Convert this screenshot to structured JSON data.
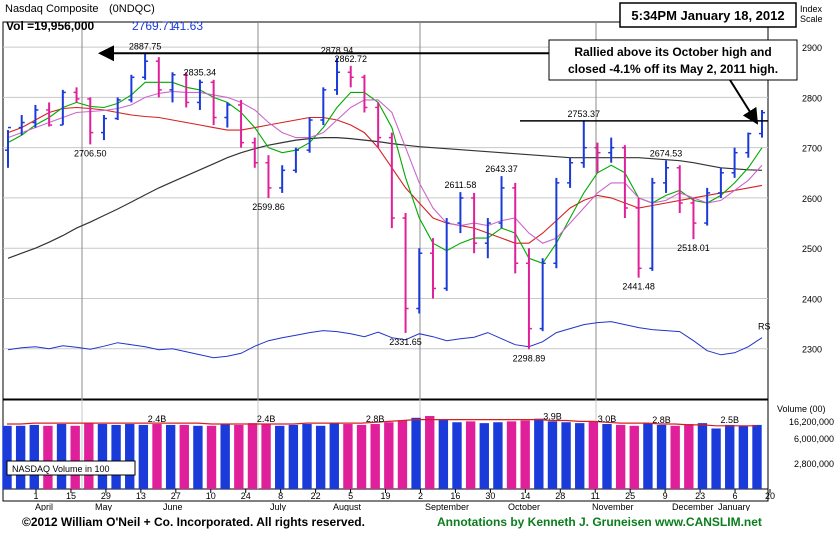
{
  "chart_data": {
    "type": "candlestick",
    "title": "Nasdaq Composite",
    "symbol": "(0NDQC)",
    "header": {
      "volume": "Vol =19,956,000",
      "last": "2769.71",
      "change": "41.63"
    },
    "timestamp": "5:34PM January 18, 2012",
    "index_scale_label": "Index\nScale",
    "y_axis": {
      "min": 2200,
      "max": 2950,
      "ticks": [
        2300,
        2400,
        2500,
        2600,
        2700,
        2800,
        2900
      ]
    },
    "x_axis": {
      "tick_days": [
        "1",
        "15",
        "29",
        "13",
        "27",
        "10",
        "24",
        "8",
        "22",
        "5",
        "19",
        "2",
        "16",
        "30",
        "14",
        "28",
        "11",
        "25",
        "9",
        "23",
        "6",
        "20"
      ],
      "months": [
        "April",
        "May",
        "June",
        "July",
        "August",
        "September",
        "October",
        "November",
        "December",
        "January"
      ]
    },
    "price_series": [
      {
        "open": 2695,
        "high": 2735,
        "low": 2660,
        "close": 2740
      },
      {
        "open": 2740,
        "high": 2765,
        "low": 2725,
        "close": 2750
      },
      {
        "open": 2750,
        "high": 2785,
        "low": 2740,
        "close": 2775
      },
      {
        "open": 2775,
        "high": 2790,
        "low": 2742,
        "close": 2745
      },
      {
        "open": 2745,
        "high": 2815,
        "low": 2745,
        "close": 2810
      },
      {
        "open": 2810,
        "high": 2820,
        "low": 2790,
        "close": 2797
      },
      {
        "open": 2797,
        "high": 2800,
        "low": 2706.5,
        "close": 2730
      },
      {
        "open": 2730,
        "high": 2765,
        "low": 2715,
        "close": 2758
      },
      {
        "open": 2758,
        "high": 2800,
        "low": 2755,
        "close": 2795
      },
      {
        "open": 2795,
        "high": 2845,
        "low": 2790,
        "close": 2840
      },
      {
        "open": 2840,
        "high": 2887.75,
        "low": 2835,
        "close": 2872
      },
      {
        "open": 2872,
        "high": 2880,
        "low": 2800,
        "close": 2815
      },
      {
        "open": 2815,
        "high": 2850,
        "low": 2790,
        "close": 2845
      },
      {
        "open": 2845,
        "high": 2850,
        "low": 2780,
        "close": 2790
      },
      {
        "open": 2790,
        "high": 2835.34,
        "low": 2775,
        "close": 2830
      },
      {
        "open": 2830,
        "high": 2835,
        "low": 2745,
        "close": 2760
      },
      {
        "open": 2760,
        "high": 2790,
        "low": 2740,
        "close": 2785
      },
      {
        "open": 2785,
        "high": 2795,
        "low": 2700,
        "close": 2710
      },
      {
        "open": 2710,
        "high": 2720,
        "low": 2660,
        "close": 2670
      },
      {
        "open": 2670,
        "high": 2685,
        "low": 2599.86,
        "close": 2620
      },
      {
        "open": 2620,
        "high": 2665,
        "low": 2610,
        "close": 2655
      },
      {
        "open": 2655,
        "high": 2700,
        "low": 2650,
        "close": 2695
      },
      {
        "open": 2695,
        "high": 2760,
        "low": 2690,
        "close": 2755
      },
      {
        "open": 2755,
        "high": 2820,
        "low": 2745,
        "close": 2815
      },
      {
        "open": 2815,
        "high": 2878.94,
        "low": 2805,
        "close": 2850
      },
      {
        "open": 2850,
        "high": 2862.72,
        "low": 2820,
        "close": 2840
      },
      {
        "open": 2840,
        "high": 2845,
        "low": 2770,
        "close": 2780
      },
      {
        "open": 2780,
        "high": 2790,
        "low": 2700,
        "close": 2720
      },
      {
        "open": 2720,
        "high": 2730,
        "low": 2540,
        "close": 2560
      },
      {
        "open": 2560,
        "high": 2570,
        "low": 2331.65,
        "close": 2380
      },
      {
        "open": 2380,
        "high": 2500,
        "low": 2370,
        "close": 2490
      },
      {
        "open": 2490,
        "high": 2520,
        "low": 2400,
        "close": 2420
      },
      {
        "open": 2420,
        "high": 2560,
        "low": 2415,
        "close": 2550
      },
      {
        "open": 2550,
        "high": 2611.58,
        "low": 2530,
        "close": 2600
      },
      {
        "open": 2600,
        "high": 2610,
        "low": 2490,
        "close": 2510
      },
      {
        "open": 2510,
        "high": 2560,
        "low": 2480,
        "close": 2550
      },
      {
        "open": 2550,
        "high": 2643.37,
        "low": 2540,
        "close": 2620
      },
      {
        "open": 2620,
        "high": 2630,
        "low": 2450,
        "close": 2470
      },
      {
        "open": 2470,
        "high": 2500,
        "low": 2298.89,
        "close": 2340
      },
      {
        "open": 2340,
        "high": 2480,
        "low": 2335,
        "close": 2470
      },
      {
        "open": 2470,
        "high": 2640,
        "low": 2460,
        "close": 2630
      },
      {
        "open": 2630,
        "high": 2680,
        "low": 2620,
        "close": 2670
      },
      {
        "open": 2670,
        "high": 2753.37,
        "low": 2660,
        "close": 2700
      },
      {
        "open": 2700,
        "high": 2710,
        "low": 2650,
        "close": 2690
      },
      {
        "open": 2690,
        "high": 2720,
        "low": 2670,
        "close": 2700
      },
      {
        "open": 2700,
        "high": 2705,
        "low": 2560,
        "close": 2580
      },
      {
        "open": 2580,
        "high": 2600,
        "low": 2441.48,
        "close": 2460
      },
      {
        "open": 2460,
        "high": 2640,
        "low": 2455,
        "close": 2630
      },
      {
        "open": 2630,
        "high": 2674.53,
        "low": 2610,
        "close": 2660
      },
      {
        "open": 2660,
        "high": 2665,
        "low": 2570,
        "close": 2590
      },
      {
        "open": 2590,
        "high": 2600,
        "low": 2518.01,
        "close": 2550
      },
      {
        "open": 2550,
        "high": 2620,
        "low": 2545,
        "close": 2610
      },
      {
        "open": 2610,
        "high": 2660,
        "low": 2600,
        "close": 2650
      },
      {
        "open": 2650,
        "high": 2700,
        "low": 2640,
        "close": 2690
      },
      {
        "open": 2690,
        "high": 2730,
        "low": 2680,
        "close": 2728
      },
      {
        "open": 2728,
        "high": 2775,
        "low": 2720,
        "close": 2769.71
      }
    ],
    "moving_averages": [
      {
        "name": "ma50",
        "color": "#d62020",
        "values": [
          2730,
          2740,
          2755,
          2770,
          2778,
          2780,
          2778,
          2775,
          2770,
          2765,
          2762,
          2760,
          2755,
          2750,
          2745,
          2740,
          2735,
          2735,
          2740,
          2745,
          2750,
          2755,
          2760,
          2760,
          2755,
          2745,
          2730,
          2700,
          2660,
          2620,
          2590,
          2560,
          2550,
          2545,
          2540,
          2530,
          2520,
          2510,
          2510,
          2530,
          2555,
          2580,
          2595,
          2605,
          2600,
          2590,
          2580,
          2585,
          2590,
          2595,
          2600,
          2605,
          2610,
          2615,
          2620,
          2625
        ]
      },
      {
        "name": "ma200",
        "color": "#333333",
        "values": [
          2480,
          2490,
          2500,
          2512,
          2525,
          2540,
          2552,
          2565,
          2578,
          2592,
          2606,
          2620,
          2632,
          2644,
          2656,
          2668,
          2680,
          2690,
          2698,
          2705,
          2710,
          2715,
          2718,
          2720,
          2720,
          2718,
          2715,
          2712,
          2708,
          2705,
          2702,
          2700,
          2698,
          2696,
          2694,
          2692,
          2690,
          2688,
          2686,
          2684,
          2682,
          2680,
          2680,
          2680,
          2680,
          2680,
          2680,
          2678,
          2676,
          2674,
          2670,
          2665,
          2660,
          2658,
          2656,
          2655
        ]
      },
      {
        "name": "ema10",
        "color": "#00aa00",
        "values": [
          2710,
          2725,
          2745,
          2760,
          2780,
          2790,
          2782,
          2780,
          2788,
          2805,
          2830,
          2830,
          2830,
          2820,
          2815,
          2800,
          2790,
          2770,
          2740,
          2700,
          2690,
          2695,
          2710,
          2740,
          2780,
          2810,
          2810,
          2790,
          2740,
          2640,
          2560,
          2510,
          2495,
          2510,
          2520,
          2520,
          2540,
          2530,
          2480,
          2470,
          2510,
          2560,
          2610,
          2650,
          2665,
          2650,
          2600,
          2590,
          2605,
          2615,
          2595,
          2590,
          2605,
          2630,
          2660,
          2700
        ]
      },
      {
        "name": "ema21",
        "color": "#cc66cc",
        "values": [
          2720,
          2730,
          2740,
          2750,
          2760,
          2770,
          2772,
          2774,
          2778,
          2785,
          2800,
          2808,
          2812,
          2810,
          2810,
          2805,
          2800,
          2790,
          2775,
          2750,
          2730,
          2720,
          2720,
          2730,
          2755,
          2780,
          2795,
          2795,
          2770,
          2700,
          2630,
          2580,
          2550,
          2545,
          2550,
          2545,
          2555,
          2560,
          2530,
          2510,
          2520,
          2550,
          2580,
          2610,
          2630,
          2630,
          2600,
          2590,
          2595,
          2610,
          2600,
          2590,
          2595,
          2615,
          2635,
          2665
        ]
      }
    ],
    "relative_strength": [
      2298,
      2302,
      2304,
      2300,
      2306,
      2303,
      2299,
      2305,
      2312,
      2308,
      2304,
      2298,
      2300,
      2294,
      2288,
      2282,
      2285,
      2291,
      2305,
      2316,
      2322,
      2327,
      2332,
      2336,
      2334,
      2330,
      2324,
      2333,
      2322,
      2318,
      2330,
      2324,
      2316,
      2320,
      2323,
      2332,
      2320,
      2308,
      2304,
      2314,
      2332,
      2340,
      2348,
      2352,
      2354,
      2348,
      2342,
      2338,
      2336,
      2334,
      2316,
      2296,
      2288,
      2292,
      2304,
      2322
    ],
    "rs_label": "RS",
    "price_annotations": [
      "2887.75",
      "2835.34",
      "2706.50",
      "2878.94",
      "2862.72",
      "2599.86",
      "2331.65",
      "2611.58",
      "2643.37",
      "2298.89",
      "2753.37",
      "2674.53",
      "2518.01",
      "2441.48"
    ],
    "annotation_text": [
      "Rallied above its October high and",
      "closed -4.1% off its May 2, 2011 high."
    ],
    "volume": {
      "label": "Volume (00)",
      "ticks": [
        "16,200,000",
        "6,000,000",
        "2,800,000"
      ],
      "legend": "NASDAQ Volume in 100",
      "peak_labels": [
        "2.4B",
        "2.4B",
        "2.8B",
        "3.9B",
        "3.0B",
        "2.8B",
        "2.5B"
      ],
      "bars": [
        0.71,
        0.71,
        0.72,
        0.71,
        0.73,
        0.71,
        0.74,
        0.73,
        0.72,
        0.73,
        0.72,
        0.73,
        0.72,
        0.72,
        0.71,
        0.71,
        0.73,
        0.72,
        0.74,
        0.73,
        0.71,
        0.72,
        0.73,
        0.71,
        0.74,
        0.73,
        0.72,
        0.73,
        0.75,
        0.77,
        0.8,
        0.82,
        0.78,
        0.75,
        0.76,
        0.74,
        0.75,
        0.76,
        0.77,
        0.79,
        0.76,
        0.75,
        0.74,
        0.76,
        0.73,
        0.72,
        0.71,
        0.74,
        0.72,
        0.71,
        0.73,
        0.74,
        0.68,
        0.72,
        0.71,
        0.72
      ],
      "avg_line": [
        0.73,
        0.73,
        0.74,
        0.74,
        0.74,
        0.74,
        0.74,
        0.74,
        0.74,
        0.74,
        0.74,
        0.74,
        0.74,
        0.74,
        0.74,
        0.73,
        0.73,
        0.73,
        0.73,
        0.73,
        0.73,
        0.73,
        0.74,
        0.74,
        0.74,
        0.74,
        0.74,
        0.75,
        0.76,
        0.77,
        0.78,
        0.78,
        0.78,
        0.78,
        0.78,
        0.78,
        0.78,
        0.78,
        0.78,
        0.78,
        0.77,
        0.77,
        0.76,
        0.76,
        0.75,
        0.74,
        0.74,
        0.74,
        0.73,
        0.73,
        0.72,
        0.72,
        0.71,
        0.71,
        0.71,
        0.71
      ]
    },
    "grid": true
  },
  "footer": {
    "copyright": "©2012 William O'Neil + Co. Incorporated. All rights reserved.",
    "annotations_by": "Annotations by Kenneth J. Gruneisen www.CANSLIM.net"
  },
  "colors": {
    "up": "#1a3ad9",
    "down": "#e0209a",
    "rs": "#2233cc",
    "annotation_green": "#0a7d1c"
  }
}
